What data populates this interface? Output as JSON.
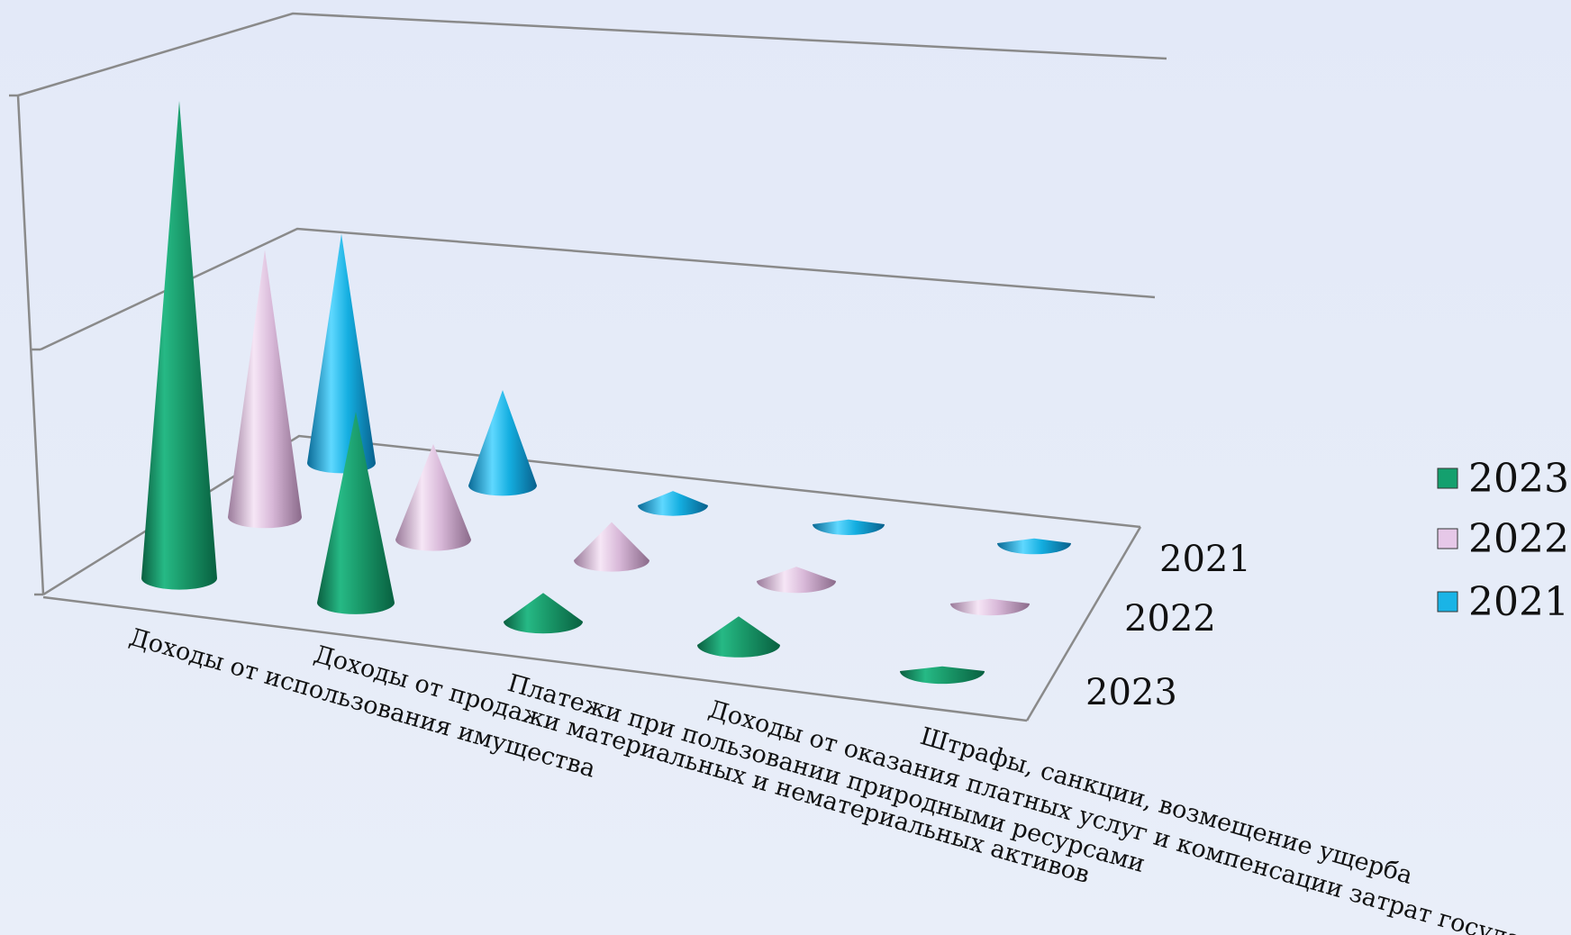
{
  "chart_data": {
    "type": "3d-cone",
    "categories": [
      "Доходы от использования имущества",
      "Доходы от продажи материальных и нематериальных активов",
      "Платежи  при пользовании природными ресурсами",
      "Доходы от оказания платных услуг и компенсации затрат государства",
      "Штрафы, санкции, возмещение ущерба"
    ],
    "series": [
      {
        "name": "2023",
        "color": "#14a06e",
        "values": [
          100,
          40,
          6,
          6,
          1
        ]
      },
      {
        "name": "2022",
        "color": "#e6c8e8",
        "values": [
          56,
          20,
          8,
          3,
          1
        ]
      },
      {
        "name": "2021",
        "color": "#1ab4e6",
        "values": [
          48,
          20,
          3,
          1,
          1
        ]
      }
    ],
    "depth_labels": [
      "2021",
      "2022",
      "2023"
    ],
    "legend": {
      "position": "right",
      "entries": [
        "2023",
        "2022",
        "2021"
      ]
    },
    "grid": true,
    "ylim": [
      0,
      100
    ]
  }
}
